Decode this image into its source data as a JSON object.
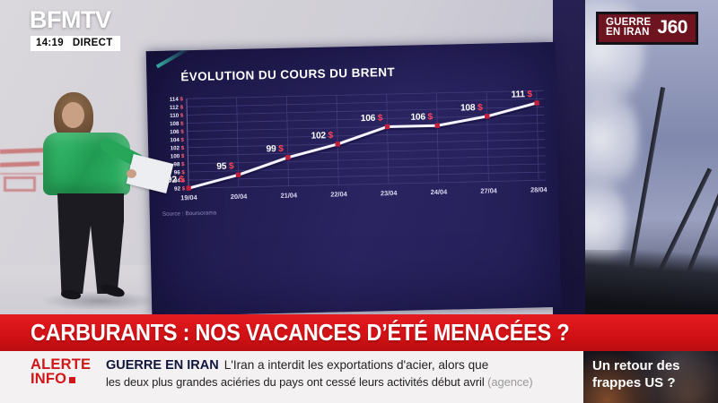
{
  "header": {
    "logo": "BFMTV",
    "time": "14:19",
    "live_label": "DIRECT",
    "badge": {
      "title_line1": "GUERRE",
      "title_line2": "EN IRAN",
      "counter": "J60"
    }
  },
  "chart_data": {
    "type": "line",
    "title": "ÉVOLUTION DU COURS DU BRENT",
    "x": [
      "19/04",
      "20/04",
      "21/04",
      "22/04",
      "23/04",
      "24/04",
      "27/04",
      "28/04"
    ],
    "values": [
      92,
      95,
      99,
      102,
      106,
      106,
      108,
      111
    ],
    "point_labels": [
      "92 $",
      "95 $",
      "99 $",
      "102 $",
      "106 $",
      "106 $",
      "108 $",
      "111 $"
    ],
    "unit": "$",
    "xlabel": "",
    "ylabel": "",
    "ylim": [
      92,
      114
    ],
    "ytick_step": 2,
    "grid": true,
    "legend": "none",
    "source": "Source : Boursorama",
    "line_color": "#f6f4ff",
    "marker_color": "#c21f3a",
    "grid_color": "#474180",
    "label_value_color": "#ffffff",
    "label_unit_color": "#ff4159"
  },
  "headline": {
    "text": "CARBURANTS : NOS VACANCES D’ÉTÉ MENACÉES ?"
  },
  "ticker": {
    "alert_word1": "ALERTE",
    "alert_word2": "INFO",
    "category": "GUERRE EN IRAN",
    "line1": "L'Iran a interdit les exportations d'acier, alors que",
    "line2": "les deux plus grandes aciéries du pays ont cessé leurs activités début avril",
    "line2_source": "(agence)"
  },
  "next_story": {
    "line1": "Un retour des",
    "line2": "frappes US ?"
  },
  "icons": {
    "alert_marker": "red-square"
  },
  "colors": {
    "bfm_red": "#cf1014",
    "alert_red": "#d11619",
    "category_navy": "#10153c",
    "screen_bg": "#241f57",
    "badge_bg": "#6e1420"
  }
}
